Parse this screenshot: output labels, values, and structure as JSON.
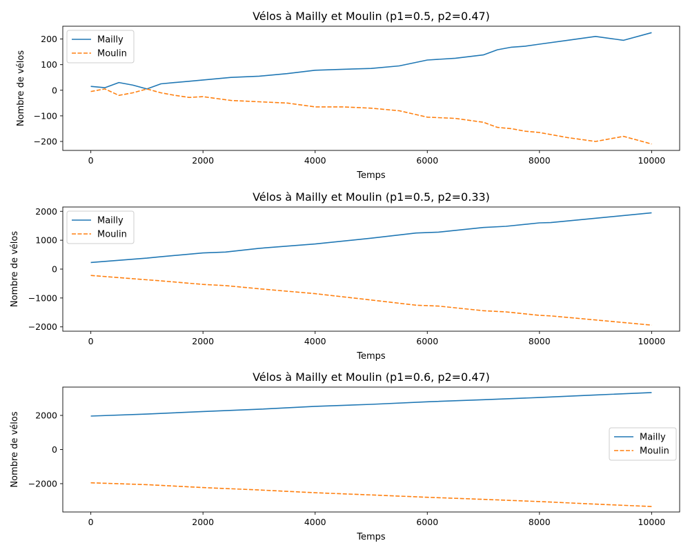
{
  "chart_data": [
    {
      "type": "line",
      "title": "Vélos à Mailly et Moulin (p1=0.5, p2=0.47)",
      "xlabel": "Temps",
      "ylabel": "Nombre de vélos",
      "xlim": [
        -500,
        10500
      ],
      "ylim": [
        -235,
        250
      ],
      "xticks": [
        0,
        2000,
        4000,
        6000,
        8000,
        10000
      ],
      "xtick_labels": [
        "0",
        "2000",
        "4000",
        "6000",
        "8000",
        "10000"
      ],
      "yticks": [
        -200,
        -100,
        0,
        100,
        200
      ],
      "ytick_labels": [
        "−200",
        "−100",
        "0",
        "100",
        "200"
      ],
      "legend": {
        "placement": "top-left"
      },
      "grid": false,
      "series": [
        {
          "name": "Mailly",
          "color": "#1f77b4",
          "dash": "solid",
          "x": [
            0,
            250,
            500,
            750,
            1000,
            1250,
            1500,
            1750,
            2000,
            2500,
            3000,
            3500,
            4000,
            4500,
            5000,
            5500,
            6000,
            6500,
            7000,
            7250,
            7500,
            7750,
            8000,
            8500,
            9000,
            9500,
            10000
          ],
          "y": [
            15,
            10,
            30,
            20,
            5,
            25,
            30,
            35,
            40,
            50,
            55,
            65,
            78,
            82,
            85,
            95,
            118,
            125,
            138,
            158,
            168,
            172,
            180,
            195,
            210,
            195,
            225
          ]
        },
        {
          "name": "Moulin",
          "color": "#ff7f0e",
          "dash": "dashed",
          "x": [
            0,
            250,
            500,
            750,
            1000,
            1250,
            1500,
            1750,
            2000,
            2500,
            3000,
            3500,
            4000,
            4500,
            5000,
            5500,
            6000,
            6500,
            7000,
            7250,
            7500,
            7750,
            8000,
            8500,
            9000,
            9500,
            10000
          ],
          "y": [
            -5,
            5,
            -20,
            -10,
            5,
            -10,
            -20,
            -28,
            -25,
            -40,
            -45,
            -50,
            -65,
            -65,
            -70,
            -80,
            -105,
            -110,
            -125,
            -145,
            -150,
            -160,
            -165,
            -185,
            -200,
            -180,
            -210
          ]
        }
      ]
    },
    {
      "type": "line",
      "title": "Vélos à Mailly et Moulin (p1=0.5, p2=0.33)",
      "xlabel": "Temps",
      "ylabel": "Nombre de vélos",
      "xlim": [
        -500,
        10500
      ],
      "ylim": [
        -2150,
        2150
      ],
      "xticks": [
        0,
        2000,
        4000,
        6000,
        8000,
        10000
      ],
      "xtick_labels": [
        "0",
        "2000",
        "4000",
        "6000",
        "8000",
        "10000"
      ],
      "yticks": [
        -2000,
        -1000,
        0,
        1000,
        2000
      ],
      "ytick_labels": [
        "−2000",
        "−1000",
        "0",
        "1000",
        "2000"
      ],
      "legend": {
        "placement": "top-left"
      },
      "grid": false,
      "series": [
        {
          "name": "Mailly",
          "color": "#1f77b4",
          "dash": "solid",
          "x": [
            0,
            1000,
            1200,
            2000,
            2400,
            3000,
            4000,
            5000,
            5800,
            6200,
            7000,
            7400,
            8000,
            8200,
            9000,
            10000
          ],
          "y": [
            230,
            380,
            420,
            560,
            590,
            720,
            870,
            1070,
            1250,
            1280,
            1440,
            1480,
            1600,
            1610,
            1760,
            1950
          ]
        },
        {
          "name": "Moulin",
          "color": "#ff7f0e",
          "dash": "dashed",
          "x": [
            0,
            1000,
            1200,
            2000,
            2400,
            3000,
            4000,
            5000,
            5800,
            6200,
            7000,
            7400,
            8000,
            8200,
            9000,
            10000
          ],
          "y": [
            -220,
            -370,
            -400,
            -530,
            -570,
            -680,
            -850,
            -1070,
            -1250,
            -1280,
            -1440,
            -1480,
            -1600,
            -1620,
            -1760,
            -1940
          ]
        }
      ]
    },
    {
      "type": "line",
      "title": "Vélos à Mailly et Moulin (p1=0.6, p2=0.47)",
      "xlabel": "Temps",
      "ylabel": "Nombre de vélos",
      "xlim": [
        -500,
        10500
      ],
      "ylim": [
        -3660,
        3660
      ],
      "xticks": [
        0,
        2000,
        4000,
        6000,
        8000,
        10000
      ],
      "xtick_labels": [
        "0",
        "2000",
        "4000",
        "6000",
        "8000",
        "10000"
      ],
      "yticks": [
        -2000,
        0,
        2000
      ],
      "ytick_labels": [
        "−2000",
        "0",
        "2000"
      ],
      "legend": {
        "placement": "center-right"
      },
      "grid": false,
      "series": [
        {
          "name": "Mailly",
          "color": "#1f77b4",
          "dash": "solid",
          "x": [
            0,
            1000,
            2000,
            3000,
            4000,
            5000,
            6000,
            7000,
            8000,
            9000,
            10000
          ],
          "y": [
            1960,
            2080,
            2230,
            2360,
            2530,
            2650,
            2800,
            2920,
            3050,
            3200,
            3340
          ]
        },
        {
          "name": "Moulin",
          "color": "#ff7f0e",
          "dash": "dashed",
          "x": [
            0,
            1000,
            2000,
            3000,
            4000,
            5000,
            6000,
            7000,
            8000,
            9000,
            10000
          ],
          "y": [
            -1950,
            -2060,
            -2230,
            -2370,
            -2530,
            -2660,
            -2800,
            -2920,
            -3050,
            -3200,
            -3340
          ]
        }
      ]
    }
  ]
}
